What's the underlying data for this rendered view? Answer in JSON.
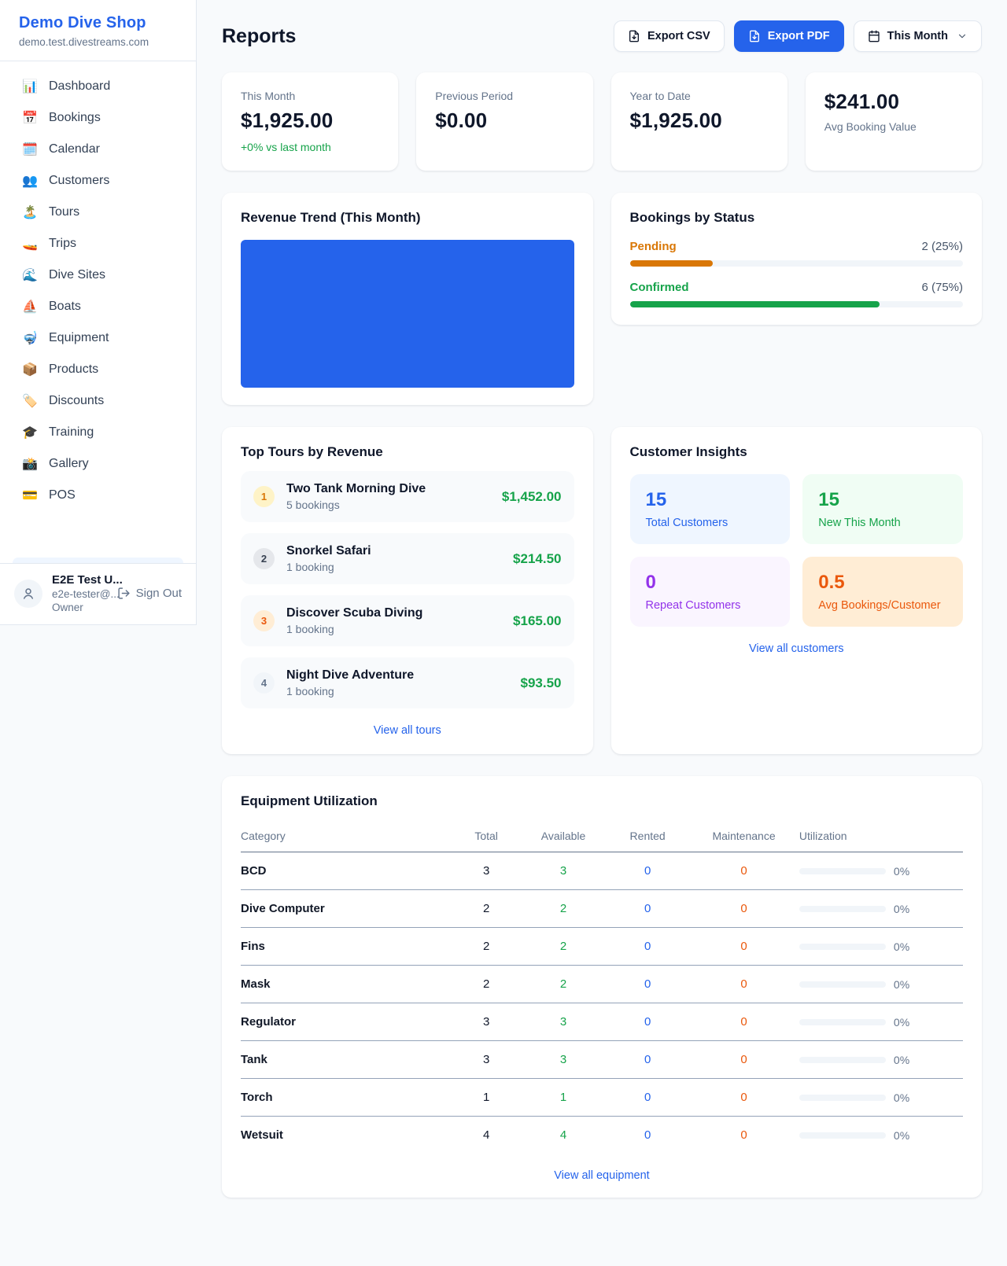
{
  "sidebar": {
    "brand": {
      "name": "Demo Dive Shop",
      "domain": "demo.test.divestreams.com"
    },
    "items": [
      {
        "label": "Dashboard",
        "icon": "📊"
      },
      {
        "label": "Bookings",
        "icon": "📅"
      },
      {
        "label": "Calendar",
        "icon": "🗓️"
      },
      {
        "label": "Customers",
        "icon": "👥"
      },
      {
        "label": "Tours",
        "icon": "🏝️"
      },
      {
        "label": "Trips",
        "icon": "🚤"
      },
      {
        "label": "Dive Sites",
        "icon": "🌊"
      },
      {
        "label": "Boats",
        "icon": "⛵"
      },
      {
        "label": "Equipment",
        "icon": "🤿"
      },
      {
        "label": "Products",
        "icon": "📦"
      },
      {
        "label": "Discounts",
        "icon": "🏷️"
      },
      {
        "label": "Training",
        "icon": "🎓"
      },
      {
        "label": "Gallery",
        "icon": "📸"
      },
      {
        "label": "POS",
        "icon": "💳"
      }
    ],
    "user": {
      "name": "E2E Test U...",
      "email": "e2e-tester@...",
      "role": "Owner",
      "sign_out_label": "Sign Out"
    }
  },
  "header": {
    "title": "Reports",
    "export_csv_label": "Export CSV",
    "export_pdf_label": "Export PDF",
    "period_label": "This Month"
  },
  "stats": [
    {
      "label": "This Month",
      "value": "$1,925.00",
      "delta": "+0% vs last month"
    },
    {
      "label": "Previous Period",
      "value": "$0.00"
    },
    {
      "label": "Year to Date",
      "value": "$1,925.00"
    },
    {
      "label": "Avg Booking Value",
      "value": "$241.00"
    }
  ],
  "revenue_trend": {
    "title": "Revenue Trend (This Month)",
    "chart_color": "#2563eb"
  },
  "bookings_by_status": {
    "title": "Bookings by Status",
    "rows": [
      {
        "label": "Pending",
        "value_text": "2 (25%)",
        "percent": 25,
        "color": "#d97706"
      },
      {
        "label": "Confirmed",
        "value_text": "6 (75%)",
        "percent": 75,
        "color": "#16a34a"
      }
    ]
  },
  "top_tours": {
    "title": "Top Tours by Revenue",
    "link": "View all tours",
    "items": [
      {
        "rank": "1",
        "name": "Two Tank Morning Dive",
        "bookings": "5 bookings",
        "revenue": "$1,452.00",
        "badge_bg": "#fef3c7",
        "badge_color": "#d97706"
      },
      {
        "rank": "2",
        "name": "Snorkel Safari",
        "bookings": "1 booking",
        "revenue": "$214.50",
        "badge_bg": "#e5e7eb",
        "badge_color": "#374151"
      },
      {
        "rank": "3",
        "name": "Discover Scuba Diving",
        "bookings": "1 booking",
        "revenue": "$165.00",
        "badge_bg": "#ffedd5",
        "badge_color": "#ea580c"
      },
      {
        "rank": "4",
        "name": "Night Dive Adventure",
        "bookings": "1 booking",
        "revenue": "$93.50",
        "badge_bg": "#f1f5f9",
        "badge_color": "#64748b"
      }
    ]
  },
  "customer_insights": {
    "title": "Customer Insights",
    "link": "View all customers",
    "tiles": [
      {
        "value": "15",
        "label": "Total Customers",
        "color": "#2563eb",
        "bg": "#eff6ff"
      },
      {
        "value": "15",
        "label": "New This Month",
        "color": "#16a34a",
        "bg": "#f0fdf4"
      },
      {
        "value": "0",
        "label": "Repeat Customers",
        "color": "#9333ea",
        "bg": "#faf5ff"
      },
      {
        "value": "0.5",
        "label": "Avg Bookings/Customer",
        "color": "#ea580c",
        "bg": "#ffedd5"
      }
    ]
  },
  "equipment": {
    "title": "Equipment Utilization",
    "link": "View all equipment",
    "columns": [
      "Category",
      "Total",
      "Available",
      "Rented",
      "Maintenance",
      "Utilization"
    ],
    "rows": [
      {
        "category": "BCD",
        "total": "3",
        "available": "3",
        "rented": "0",
        "maintenance": "0",
        "utilization": "0%",
        "percent": 0
      },
      {
        "category": "Dive Computer",
        "total": "2",
        "available": "2",
        "rented": "0",
        "maintenance": "0",
        "utilization": "0%",
        "percent": 0
      },
      {
        "category": "Fins",
        "total": "2",
        "available": "2",
        "rented": "0",
        "maintenance": "0",
        "utilization": "0%",
        "percent": 0
      },
      {
        "category": "Mask",
        "total": "2",
        "available": "2",
        "rented": "0",
        "maintenance": "0",
        "utilization": "0%",
        "percent": 0
      },
      {
        "category": "Regulator",
        "total": "3",
        "available": "3",
        "rented": "0",
        "maintenance": "0",
        "utilization": "0%",
        "percent": 0
      },
      {
        "category": "Tank",
        "total": "3",
        "available": "3",
        "rented": "0",
        "maintenance": "0",
        "utilization": "0%",
        "percent": 0
      },
      {
        "category": "Torch",
        "total": "1",
        "available": "1",
        "rented": "0",
        "maintenance": "0",
        "utilization": "0%",
        "percent": 0
      },
      {
        "category": "Wetsuit",
        "total": "4",
        "available": "4",
        "rented": "0",
        "maintenance": "0",
        "utilization": "0%",
        "percent": 0
      }
    ]
  }
}
